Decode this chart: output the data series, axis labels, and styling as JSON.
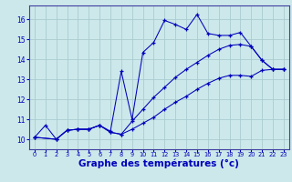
{
  "background_color": "#cce8ea",
  "grid_color": "#aaccd0",
  "line_color": "#0000bb",
  "xlabel": "Graphe des températures (°c)",
  "xlabel_fontsize": 7.5,
  "ylim": [
    9.5,
    16.7
  ],
  "xlim": [
    -0.5,
    23.5
  ],
  "yticks": [
    10,
    11,
    12,
    13,
    14,
    15,
    16
  ],
  "xticks": [
    0,
    1,
    2,
    3,
    4,
    5,
    6,
    7,
    8,
    9,
    10,
    11,
    12,
    13,
    14,
    15,
    16,
    17,
    18,
    19,
    20,
    21,
    22,
    23
  ],
  "s1_x": [
    0,
    1,
    2,
    3,
    4,
    5,
    6,
    7,
    8,
    9,
    10,
    11,
    12,
    13,
    14,
    15,
    16,
    17,
    18,
    19,
    20,
    21,
    22,
    23
  ],
  "s1_y": [
    10.1,
    10.7,
    10.0,
    10.45,
    10.5,
    10.5,
    10.7,
    10.4,
    13.4,
    11.0,
    14.35,
    14.85,
    15.95,
    15.75,
    15.5,
    16.25,
    15.3,
    15.2,
    15.2,
    15.35,
    14.65,
    13.95,
    13.5,
    13.5
  ],
  "s2_x": [
    0,
    2,
    3,
    4,
    5,
    6,
    7,
    8,
    9,
    10,
    11,
    12,
    13,
    14,
    15,
    16,
    17,
    18,
    19,
    20,
    21,
    22,
    23
  ],
  "s2_y": [
    10.1,
    10.0,
    10.45,
    10.5,
    10.5,
    10.7,
    10.35,
    10.25,
    10.9,
    11.5,
    12.1,
    12.6,
    13.1,
    13.5,
    13.85,
    14.2,
    14.5,
    14.7,
    14.75,
    14.65,
    13.95,
    13.5,
    13.5
  ],
  "s3_x": [
    0,
    2,
    3,
    4,
    5,
    6,
    7,
    8,
    9,
    10,
    11,
    12,
    13,
    14,
    15,
    16,
    17,
    18,
    19,
    20,
    21,
    22,
    23
  ],
  "s3_y": [
    10.1,
    10.0,
    10.45,
    10.5,
    10.5,
    10.7,
    10.35,
    10.25,
    10.5,
    10.8,
    11.1,
    11.5,
    11.85,
    12.15,
    12.5,
    12.8,
    13.05,
    13.2,
    13.2,
    13.15,
    13.45,
    13.5,
    13.5
  ]
}
